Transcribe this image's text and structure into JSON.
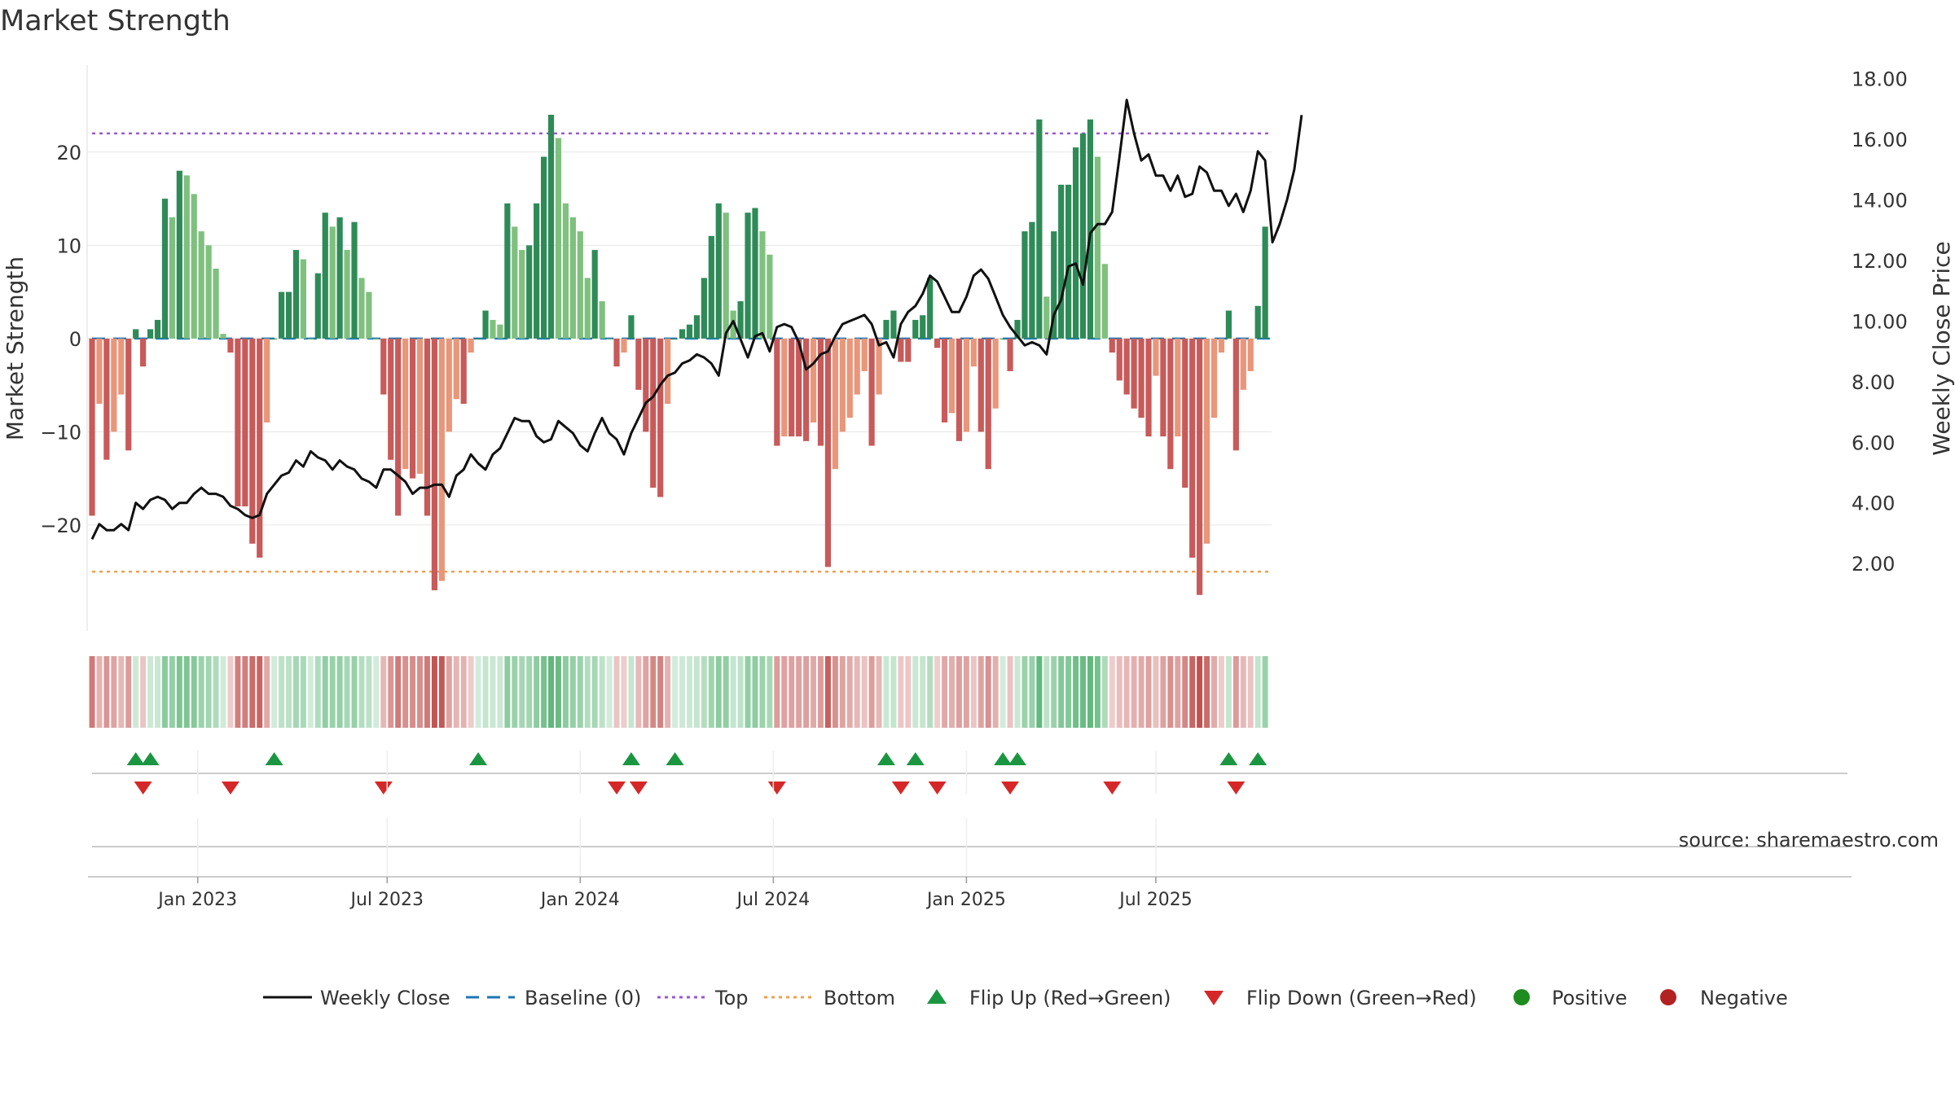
{
  "chart_data": {
    "type": "bar",
    "title": "Market Strength",
    "left_axis_label": "Market Strength",
    "right_axis_label": "Weekly Close Price",
    "left_ticks": [
      "20",
      "10",
      "0",
      "−10",
      "−20"
    ],
    "left_tick_values": [
      20,
      10,
      0,
      -10,
      -20
    ],
    "right_ticks": [
      "18.00",
      "16.00",
      "14.00",
      "12.00",
      "10.00",
      "8.00",
      "6.00",
      "4.00",
      "2.00"
    ],
    "right_tick_values": [
      18,
      16,
      14,
      12,
      10,
      8,
      6,
      4,
      2
    ],
    "x_ticks": [
      "Jan 2023",
      "Jul 2023",
      "Jan 2024",
      "Jul 2024",
      "Jan 2025",
      "Jul 2025"
    ],
    "x_tick_weeks": [
      14.5,
      40.5,
      67,
      93.5,
      120,
      146
    ],
    "ylim_left": [
      -29,
      29.5
    ],
    "ylim_right": [
      0.5,
      18.5
    ],
    "top_level": 22,
    "bottom_level": -25,
    "source": "source: sharemaestro.com",
    "legend": [
      "Weekly Close",
      "Baseline (0)",
      "Top",
      "Bottom",
      "Flip Up (Red→Green)",
      "Flip Down (Green→Red)",
      "Positive",
      "Negative"
    ],
    "colors": {
      "up_dark": "#2e8b57",
      "up_light": "#7fc07f",
      "down_dark": "#c85a5a",
      "down_light": "#e9967a",
      "line": "#111111",
      "baseline": "#1f77b4",
      "top": "#9b59d0",
      "bottom": "#f0a050",
      "flip_up": "#1a9641",
      "flip_down": "#d62728",
      "positive": "#1e8c1e",
      "negative": "#b22222"
    },
    "strength": [
      -19,
      -7,
      -13,
      -10,
      -6,
      -12,
      1,
      -3,
      1,
      2,
      15,
      13,
      18,
      17.5,
      15.5,
      11.5,
      10,
      7.5,
      0.5,
      -1.5,
      -18,
      -18,
      -22,
      -23.5,
      -9,
      0,
      5,
      5,
      9.5,
      8.5,
      0,
      7,
      13.5,
      12,
      13,
      9.5,
      12.5,
      6.5,
      5,
      0,
      -6,
      -13,
      -19,
      -14,
      -15,
      -14.5,
      -19,
      -27,
      -26,
      -10,
      -6.5,
      -7,
      -1.5,
      0,
      3,
      2,
      1.5,
      14.5,
      12,
      9.5,
      10,
      14.5,
      19.5,
      24,
      21.5,
      14.5,
      13,
      11.5,
      6.5,
      9.5,
      4,
      0,
      -3,
      -1.5,
      2.5,
      -5.5,
      -10,
      -16,
      -17,
      -7,
      0,
      1,
      1.5,
      2.5,
      6.5,
      11,
      14.5,
      13.5,
      3,
      4,
      13.5,
      14,
      11.5,
      9,
      -11.5,
      -10.5,
      -10.5,
      -10.5,
      -11,
      -9,
      -11.5,
      -24.5,
      -14,
      -10,
      -8.5,
      -6,
      -3.5,
      -11.5,
      -6,
      2,
      3,
      -2.5,
      -2.5,
      2,
      2.5,
      6.5,
      -1,
      -9,
      -8,
      -11,
      -10,
      -3,
      -10,
      -14,
      -7.5,
      0,
      -3.5,
      2,
      11.5,
      12.5,
      23.5,
      4.5,
      11.5,
      16.5,
      16.5,
      20.5,
      22,
      23.5,
      19.5,
      8,
      -1.5,
      -4.5,
      -6,
      -7.5,
      -8.5,
      -10.5,
      -4,
      -10.5,
      -14,
      -10.5,
      -16,
      -23.5,
      -27.5,
      -22,
      -8.5,
      -1.5,
      3,
      -12,
      -5.5,
      -3.5,
      3.5,
      12
    ],
    "close": [
      2.8,
      3.3,
      3.1,
      3.1,
      3.3,
      3.1,
      4,
      3.8,
      4.1,
      4.2,
      4.1,
      3.8,
      4,
      4,
      4.3,
      4.5,
      4.3,
      4.3,
      4.2,
      3.9,
      3.8,
      3.6,
      3.5,
      3.6,
      4.3,
      4.6,
      4.9,
      5,
      5.4,
      5.2,
      5.7,
      5.5,
      5.4,
      5.1,
      5.4,
      5.2,
      5.1,
      4.8,
      4.7,
      4.5,
      5.1,
      5.1,
      4.9,
      4.7,
      4.3,
      4.5,
      4.5,
      4.6,
      4.6,
      4.2,
      4.9,
      5.1,
      5.6,
      5.3,
      5.1,
      5.6,
      5.8,
      6.3,
      6.8,
      6.7,
      6.7,
      6.2,
      6,
      6.1,
      6.7,
      6.5,
      6.3,
      5.9,
      5.7,
      6.3,
      6.8,
      6.3,
      6.1,
      5.6,
      6.3,
      6.8,
      7.3,
      7.5,
      7.9,
      8.2,
      8.3,
      8.6,
      8.7,
      8.9,
      8.8,
      8.6,
      8.2,
      9.6,
      10,
      9.4,
      8.8,
      9.5,
      9.6,
      9,
      9.8,
      9.9,
      9.8,
      9.3,
      8.4,
      8.6,
      8.9,
      9,
      9.5,
      9.9,
      10,
      10.1,
      10.2,
      9.9,
      9.2,
      9.3,
      8.8,
      9.9,
      10.3,
      10.5,
      10.9,
      11.5,
      11.3,
      10.8,
      10.3,
      10.3,
      10.8,
      11.5,
      11.7,
      11.4,
      10.8,
      10.2,
      9.8,
      9.5,
      9.2,
      9.3,
      9.2,
      8.9,
      10.2,
      10.7,
      11.8,
      11.9,
      11.2,
      12.9,
      13.2,
      13.2,
      13.6,
      15.4,
      17.3,
      16.2,
      15.3,
      15.5,
      14.8,
      14.8,
      14.3,
      14.8,
      14.1,
      14.2,
      15.1,
      14.9,
      14.3,
      14.3,
      13.8,
      14.2,
      13.6,
      14.3,
      15.6,
      15.3,
      12.6,
      13.2,
      14,
      15,
      16.8
    ]
  }
}
